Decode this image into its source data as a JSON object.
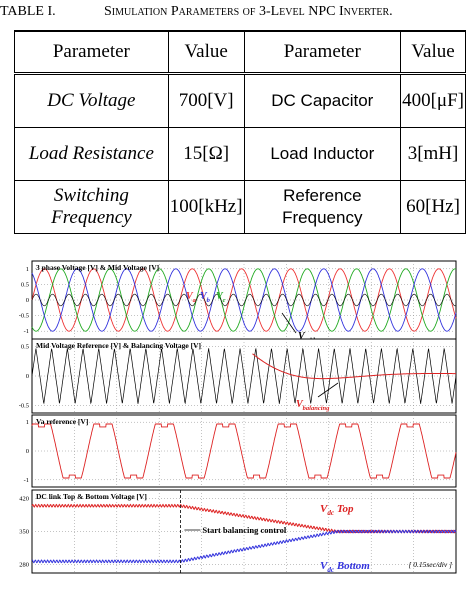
{
  "caption": {
    "label": "TABLE I.",
    "title": "Simulation Parameters of 3-Level NPC Inverter."
  },
  "table": {
    "headers": [
      "Parameter",
      "Value",
      "Parameter",
      "Value"
    ],
    "rows": [
      [
        "DC Voltage",
        "700[V]",
        "DC Capacitor",
        "400[μF]"
      ],
      [
        "Load Resistance",
        "15[Ω]",
        "Load Inductor",
        "3[mH]"
      ],
      [
        "Switching Frequency",
        "100[kHz]",
        "Reference Frequency",
        "60[Hz]"
      ]
    ]
  },
  "figure": {
    "panels": [
      {
        "title": "3 phase Voltage [V] & Mid Voltage [V]",
        "yticks": [
          "1",
          "0.5",
          "0",
          "-0.5",
          "-1"
        ],
        "annotations": [
          {
            "base": "V",
            "sub": "a"
          },
          {
            "base": "V",
            "sub": "b"
          },
          {
            "base": "V",
            "sub": "c"
          },
          {
            "base": "V",
            "sub": "mid"
          }
        ]
      },
      {
        "title": "Mid Voltage Reference [V] & Balancing Voltage [V]",
        "yticks": [
          "0.5",
          "0",
          "-0.5"
        ],
        "annotations": [
          {
            "base": "V",
            "sub": "balancing"
          }
        ]
      },
      {
        "title": "Va reference [V]",
        "yticks": [
          "1",
          "0",
          "-1"
        ],
        "annotations": []
      },
      {
        "title": "DC link Top & Bottom Voltage [V]",
        "yticks": [
          "420",
          "350",
          "280"
        ],
        "annotations": [
          {
            "base": "V",
            "sub": "dc",
            "suffix": " Top"
          },
          {
            "base": "V",
            "sub": "dc",
            "suffix": " Bottom"
          }
        ],
        "notes": [
          "Start balancing control",
          "[ 0.15sec/div ]"
        ]
      }
    ]
  }
}
